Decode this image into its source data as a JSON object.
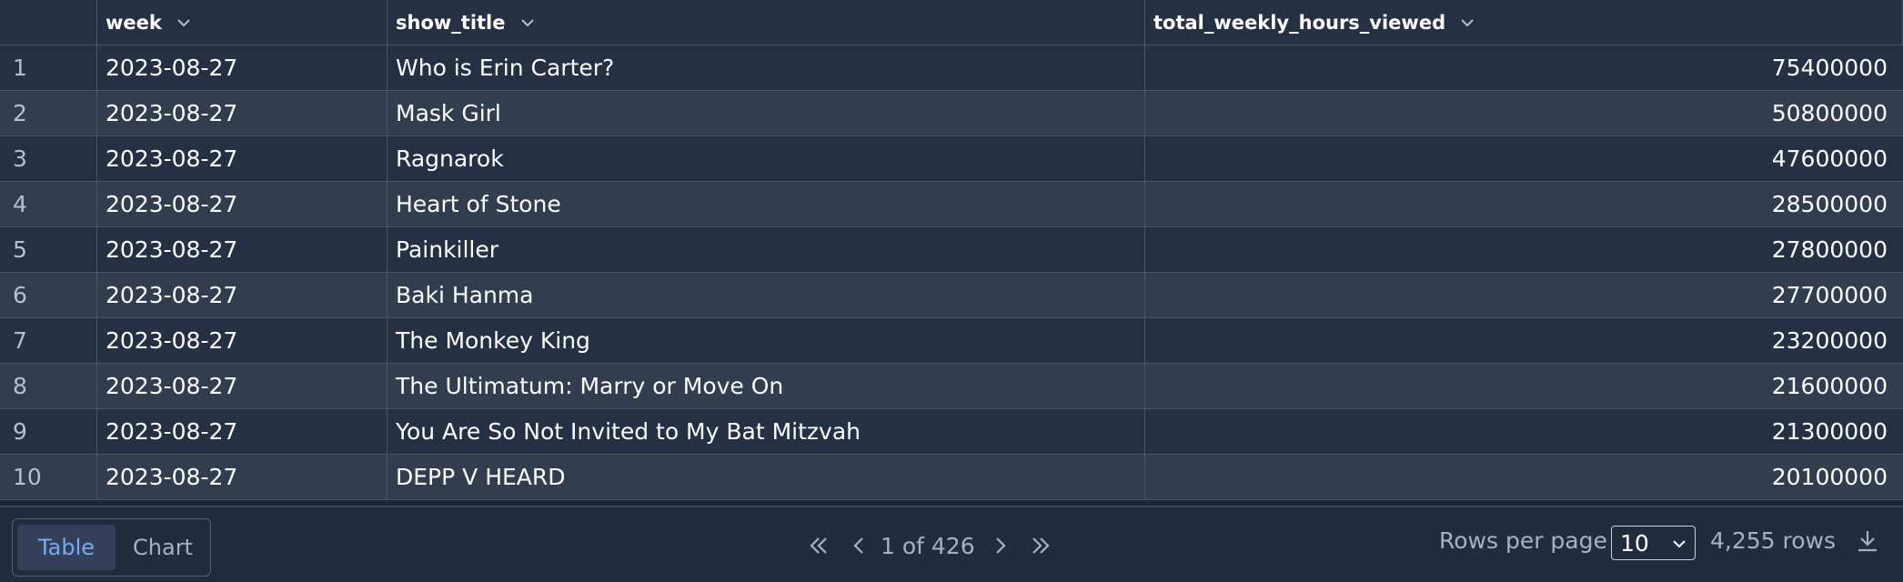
{
  "table": {
    "columns": [
      {
        "label": ""
      },
      {
        "label": "week"
      },
      {
        "label": "show_title"
      },
      {
        "label": "total_weekly_hours_viewed"
      }
    ],
    "rows": [
      {
        "index": "1",
        "week": "2023-08-27",
        "show_title": "Who is Erin Carter?",
        "hours": "75400000"
      },
      {
        "index": "2",
        "week": "2023-08-27",
        "show_title": "Mask Girl",
        "hours": "50800000"
      },
      {
        "index": "3",
        "week": "2023-08-27",
        "show_title": "Ragnarok",
        "hours": "47600000"
      },
      {
        "index": "4",
        "week": "2023-08-27",
        "show_title": "Heart of Stone",
        "hours": "28500000"
      },
      {
        "index": "5",
        "week": "2023-08-27",
        "show_title": "Painkiller",
        "hours": "27800000"
      },
      {
        "index": "6",
        "week": "2023-08-27",
        "show_title": "Baki Hanma",
        "hours": "27700000"
      },
      {
        "index": "7",
        "week": "2023-08-27",
        "show_title": "The Monkey King",
        "hours": "23200000"
      },
      {
        "index": "8",
        "week": "2023-08-27",
        "show_title": "The Ultimatum: Marry or Move On",
        "hours": "21600000"
      },
      {
        "index": "9",
        "week": "2023-08-27",
        "show_title": "You Are So Not Invited to My Bat Mitzvah",
        "hours": "21300000"
      },
      {
        "index": "10",
        "week": "2023-08-27",
        "show_title": "DEPP V HEARD",
        "hours": "20100000"
      }
    ]
  },
  "footer": {
    "view_tabs": {
      "table": "Table",
      "chart": "Chart",
      "active": "table"
    },
    "pagination": {
      "label": "1 of 426"
    },
    "rows_per_page": {
      "label": "Rows per page",
      "value": "10"
    },
    "row_count": "4,255 rows"
  },
  "icons": {
    "sort": "chevron-down-icon",
    "first": "double-chevron-left-icon",
    "prev": "chevron-left-icon",
    "next": "chevron-right-icon",
    "last": "double-chevron-right-icon",
    "download": "download-icon"
  },
  "colors": {
    "background": "#1e2638",
    "row_odd": "#263044",
    "row_even": "#333d50",
    "accent": "#7aa9f2"
  }
}
